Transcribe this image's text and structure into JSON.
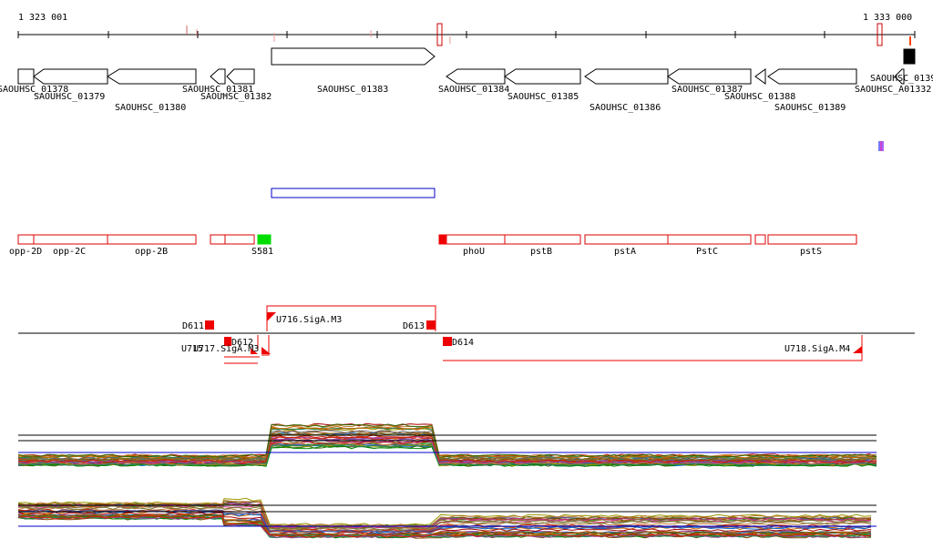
{
  "ruler": {
    "start_label": "1 323 001",
    "end_label": "1 333 000"
  },
  "genes": [
    {
      "id": "SAOUHSC_01378"
    },
    {
      "id": "SAOUHSC_01379"
    },
    {
      "id": "SAOUHSC_01380"
    },
    {
      "id": "SAOUHSC_01381"
    },
    {
      "id": "SAOUHSC_01382"
    },
    {
      "id": "SAOUHSC_01383"
    },
    {
      "id": "SAOUHSC_01384"
    },
    {
      "id": "SAOUHSC_01385"
    },
    {
      "id": "SAOUHSC_01386"
    },
    {
      "id": "SAOUHSC_01387"
    },
    {
      "id": "SAOUHSC_01388"
    },
    {
      "id": "SAOUHSC_01389"
    },
    {
      "id": "SAOUHSC_A01332"
    },
    {
      "id": "SAOUHSC_0139"
    }
  ],
  "annotations": [
    {
      "name": "opp-2D"
    },
    {
      "name": "opp-2C"
    },
    {
      "name": "opp-2B"
    },
    {
      "name": "S581"
    },
    {
      "name": "phoU"
    },
    {
      "name": "pstB"
    },
    {
      "name": "pstA"
    },
    {
      "name": "PstC"
    },
    {
      "name": "pstS"
    }
  ],
  "features": [
    {
      "name": "D611"
    },
    {
      "name": "D612"
    },
    {
      "name": "U716.SigA.M3"
    },
    {
      "name": "D613"
    },
    {
      "name": "D614"
    },
    {
      "name": "U715"
    },
    {
      "name": "U717.SigA.M3"
    },
    {
      "name": "U718.SigA.M4"
    }
  ],
  "colors": {
    "annotation_box": "#dd0000",
    "feature": "#ee0000",
    "highlight": "#00dd00",
    "blue_box": "#0000cc"
  }
}
